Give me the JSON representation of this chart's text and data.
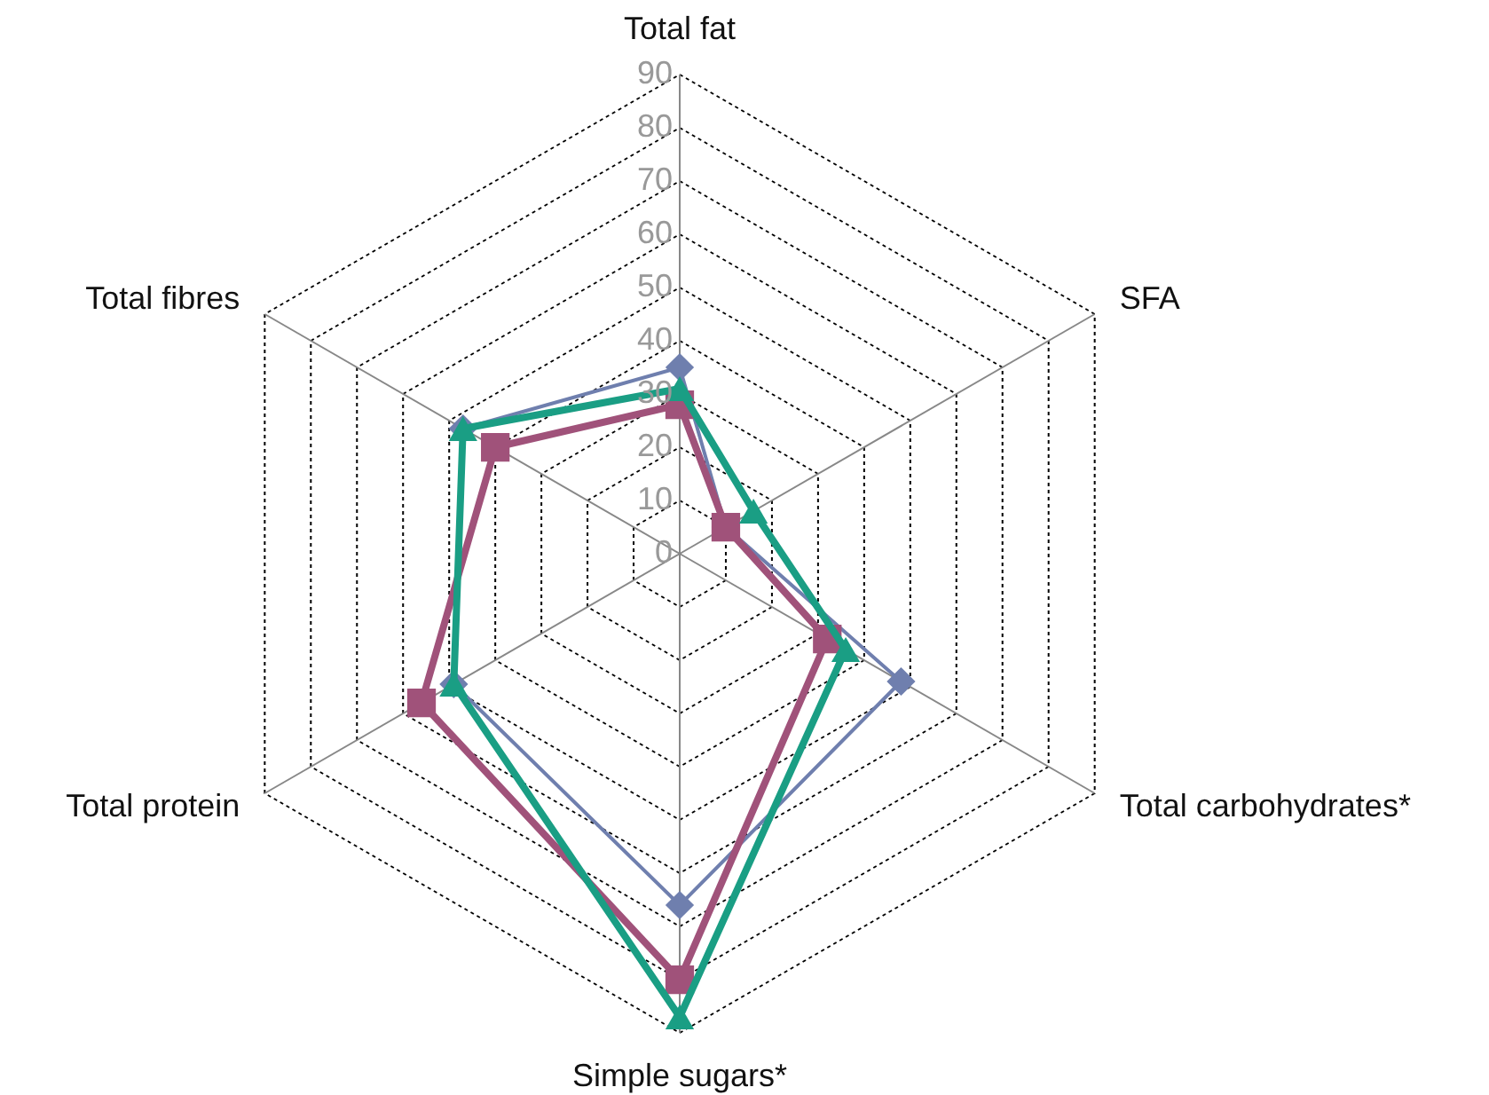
{
  "chart_data": {
    "type": "radar",
    "categories": [
      "Total fat",
      "SFA",
      "Total carbohydrates*",
      "Simple sugars*",
      "Total protein",
      "Total fibres"
    ],
    "ylim": [
      0,
      90
    ],
    "yticks": [
      0,
      10,
      20,
      30,
      40,
      50,
      60,
      70,
      80,
      90
    ],
    "grid": true,
    "series": [
      {
        "color": "#6f7fae",
        "marker": "diamond",
        "values": [
          35,
          10,
          48,
          66,
          49,
          47
        ]
      },
      {
        "color": "#a0527a",
        "marker": "square",
        "values": [
          28,
          10,
          32,
          80,
          56,
          40
        ]
      },
      {
        "color": "#1a9e84",
        "marker": "triangle",
        "values": [
          31,
          16,
          36,
          87,
          49,
          47
        ]
      }
    ]
  }
}
